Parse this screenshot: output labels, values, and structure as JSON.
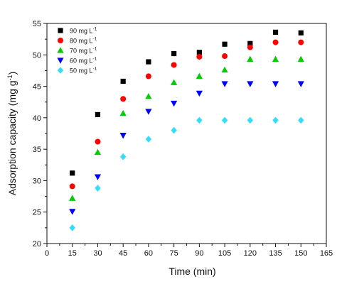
{
  "chart_data": {
    "type": "scatter",
    "xlabel": "Time (min)",
    "ylabel": "Adsorption capacity (mg g",
    "ylabel_sup": "-1",
    "ylabel_close": ")",
    "xlim": [
      0,
      165
    ],
    "ylim": [
      20,
      55
    ],
    "xticks": [
      0,
      15,
      30,
      45,
      60,
      75,
      90,
      105,
      120,
      135,
      150,
      165
    ],
    "yticks": [
      20,
      25,
      30,
      35,
      40,
      45,
      50,
      55
    ],
    "grid": false,
    "legend_position": "top-left",
    "x": [
      15,
      30,
      45,
      60,
      75,
      90,
      105,
      120,
      135,
      150
    ],
    "series": [
      {
        "name": "90 mg L",
        "name_sup": "-1",
        "marker": "square",
        "color": "#000000",
        "values": [
          31.2,
          40.5,
          45.8,
          48.9,
          50.2,
          50.4,
          51.7,
          51.8,
          53.6,
          53.5
        ]
      },
      {
        "name": "80 mg L",
        "name_sup": "-1",
        "marker": "circle",
        "color": "#ff0000",
        "values": [
          29.1,
          36.2,
          43.0,
          46.6,
          48.4,
          49.7,
          49.8,
          51.2,
          52.0,
          52.0
        ]
      },
      {
        "name": "70 mg L",
        "name_sup": "-1",
        "marker": "triangle-up",
        "color": "#00cc00",
        "values": [
          27.2,
          34.5,
          40.7,
          43.4,
          45.6,
          46.6,
          47.6,
          49.3,
          49.3,
          49.3
        ]
      },
      {
        "name": "60 mg L",
        "name_sup": "-1",
        "marker": "triangle-down",
        "color": "#0000ff",
        "values": [
          25.1,
          30.6,
          37.2,
          41.0,
          42.3,
          43.9,
          45.4,
          45.4,
          45.4,
          45.4
        ]
      },
      {
        "name": "50 mg L",
        "name_sup": "-1",
        "marker": "diamond",
        "color": "#33ddff",
        "values": [
          22.5,
          28.8,
          33.8,
          36.6,
          38.0,
          39.6,
          39.6,
          39.6,
          39.6,
          39.6
        ]
      }
    ]
  }
}
